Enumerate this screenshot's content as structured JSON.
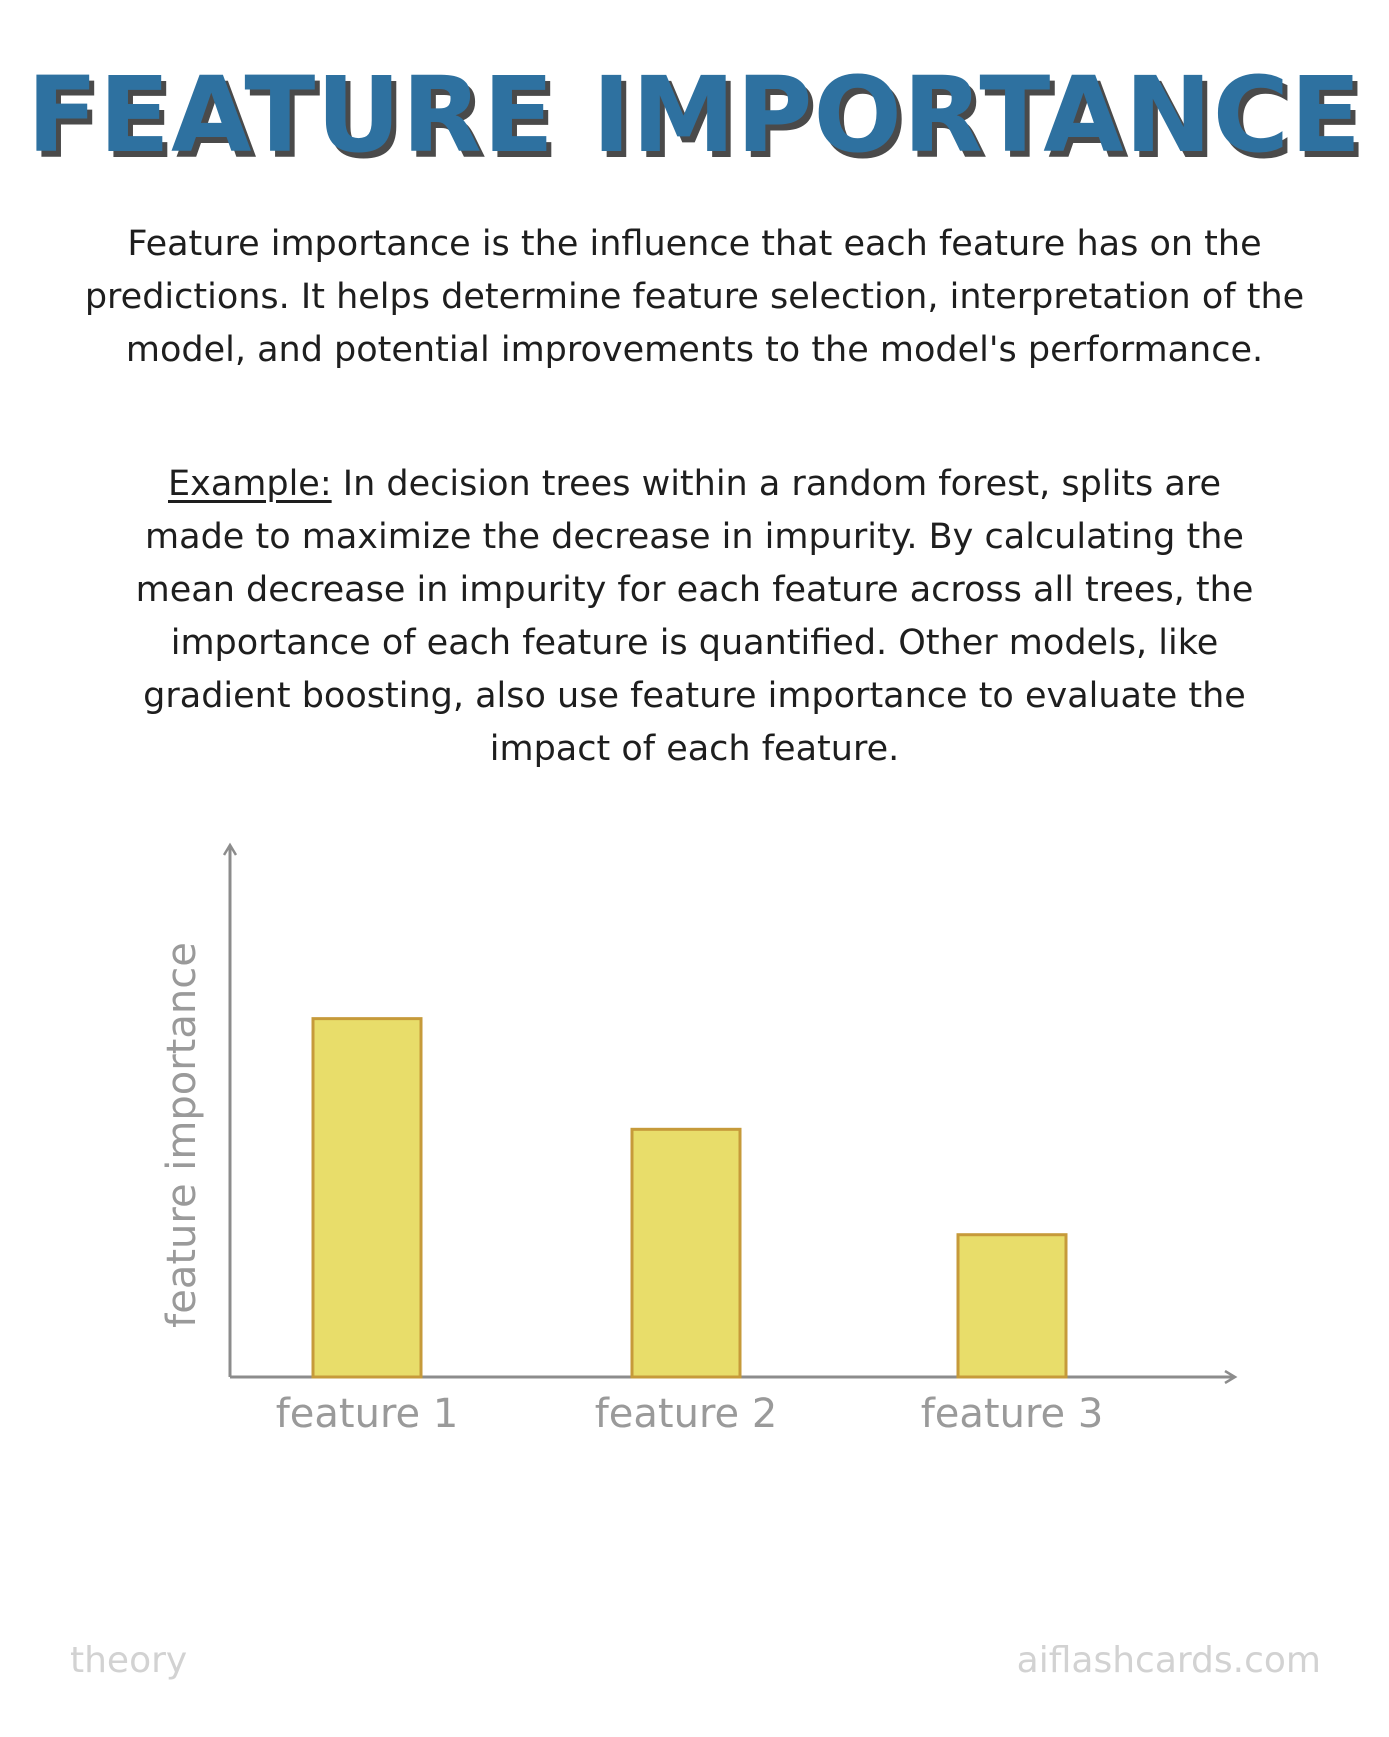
{
  "title": "FEATURE IMPORTANCE",
  "definition": "Feature importance is the influence that each feature has on the predictions. It helps determine feature selection, interpretation of the model, and potential improvements to the model's performance.",
  "example": {
    "label": "Example:",
    "text": " In decision trees within a random forest, splits are made to maximize the decrease in impurity. By calculating the mean decrease in impurity for each feature across all trees, the importance of each feature is quantified. Other models, like gradient boosting, also use feature importance to evaluate the impact of each feature."
  },
  "chart_data": {
    "type": "bar",
    "categories": [
      "feature 1",
      "feature 2",
      "feature 3"
    ],
    "values": [
      0.68,
      0.47,
      0.27
    ],
    "ylabel": "feature importance",
    "xlabel": "",
    "ylim": [
      0,
      1
    ],
    "grid": false,
    "bar_color": "#e8dd6a",
    "bar_edge_color": "#c69a3a",
    "axis_color": "#8c8c8c"
  },
  "footer": {
    "left": "theory",
    "right": "aiflashcards.com"
  }
}
